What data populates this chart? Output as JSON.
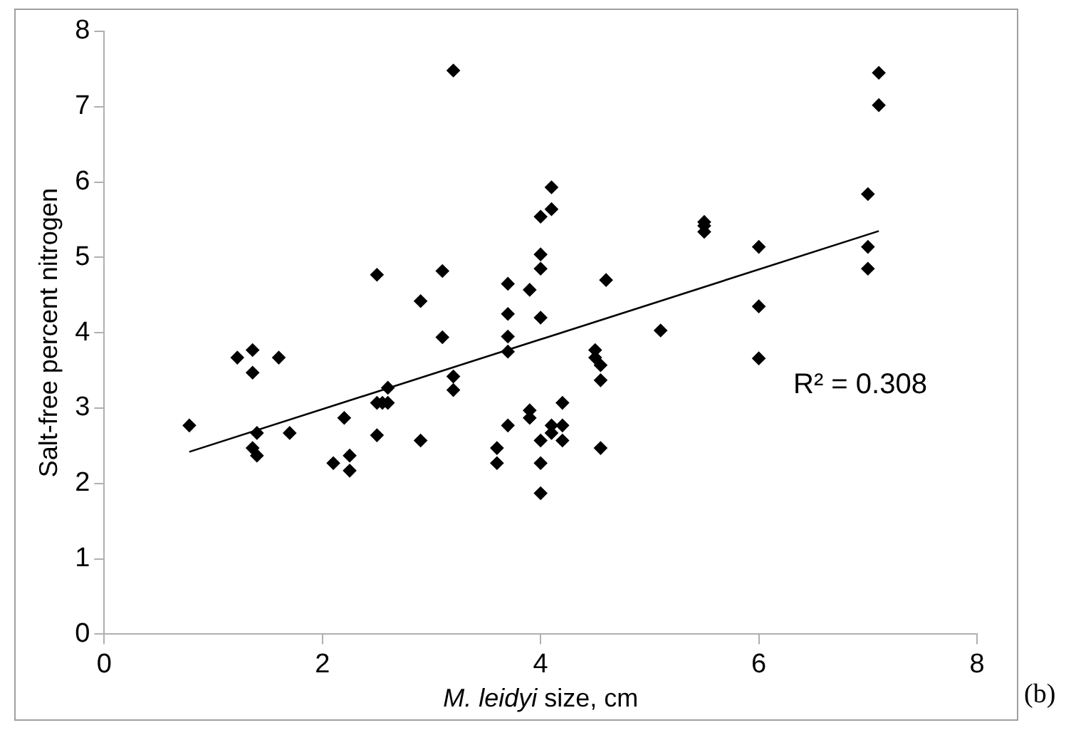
{
  "chart_data": {
    "type": "scatter",
    "xlabel": "M. leidyi size, cm",
    "ylabel": "Salt-free percent nitrogen",
    "xlim": [
      0,
      8
    ],
    "xticks": [
      0,
      2,
      4,
      6,
      8
    ],
    "ylim": [
      0,
      8
    ],
    "yticks": [
      0,
      1,
      2,
      3,
      4,
      5,
      6,
      7,
      8
    ],
    "grid": false,
    "legend": false,
    "marker": "diamond",
    "series": [
      {
        "color": "#000000",
        "x": [
          0.78,
          1.22,
          1.36,
          1.36,
          1.4,
          1.36,
          1.4,
          1.6,
          1.7,
          2.1,
          2.2,
          2.25,
          2.25,
          2.5,
          2.5,
          2.5,
          2.55,
          2.6,
          2.6,
          2.9,
          2.9,
          3.1,
          3.1,
          3.2,
          3.2,
          3.2,
          3.6,
          3.6,
          3.7,
          3.7,
          3.7,
          3.7,
          3.7,
          3.9,
          3.9,
          3.9,
          4.0,
          4.0,
          4.0,
          4.0,
          4.0,
          4.0,
          4.0,
          4.1,
          4.1,
          4.1,
          4.1,
          4.2,
          4.2,
          4.2,
          4.5,
          4.5,
          4.55,
          4.55,
          4.55,
          4.6,
          5.1,
          5.5,
          5.5,
          5.5,
          6.0,
          6.0,
          6.0,
          7.0,
          7.0,
          7.0,
          7.1,
          7.1
        ],
        "values": [
          2.77,
          3.67,
          3.77,
          3.47,
          2.67,
          2.47,
          2.37,
          3.67,
          2.67,
          2.27,
          2.87,
          2.37,
          2.17,
          4.77,
          2.64,
          3.07,
          3.07,
          3.07,
          3.27,
          4.42,
          2.57,
          4.82,
          3.94,
          7.48,
          3.42,
          3.24,
          2.47,
          2.27,
          4.65,
          4.25,
          3.95,
          3.75,
          2.77,
          4.57,
          2.97,
          2.87,
          5.54,
          5.04,
          4.85,
          4.2,
          2.57,
          2.27,
          1.87,
          5.93,
          5.64,
          2.77,
          2.67,
          3.07,
          2.77,
          2.57,
          3.77,
          3.67,
          3.57,
          3.37,
          2.47,
          4.7,
          4.03,
          5.47,
          5.42,
          5.34,
          5.14,
          4.35,
          3.66,
          5.84,
          5.14,
          4.85,
          7.45,
          7.02
        ]
      },
      {
        "type": "line",
        "color": "#000000",
        "marker": "none",
        "x": [
          0.78,
          7.1
        ],
        "values": [
          2.42,
          5.35
        ]
      }
    ],
    "annotations": [
      "R² = 0.308",
      "(b)"
    ]
  }
}
